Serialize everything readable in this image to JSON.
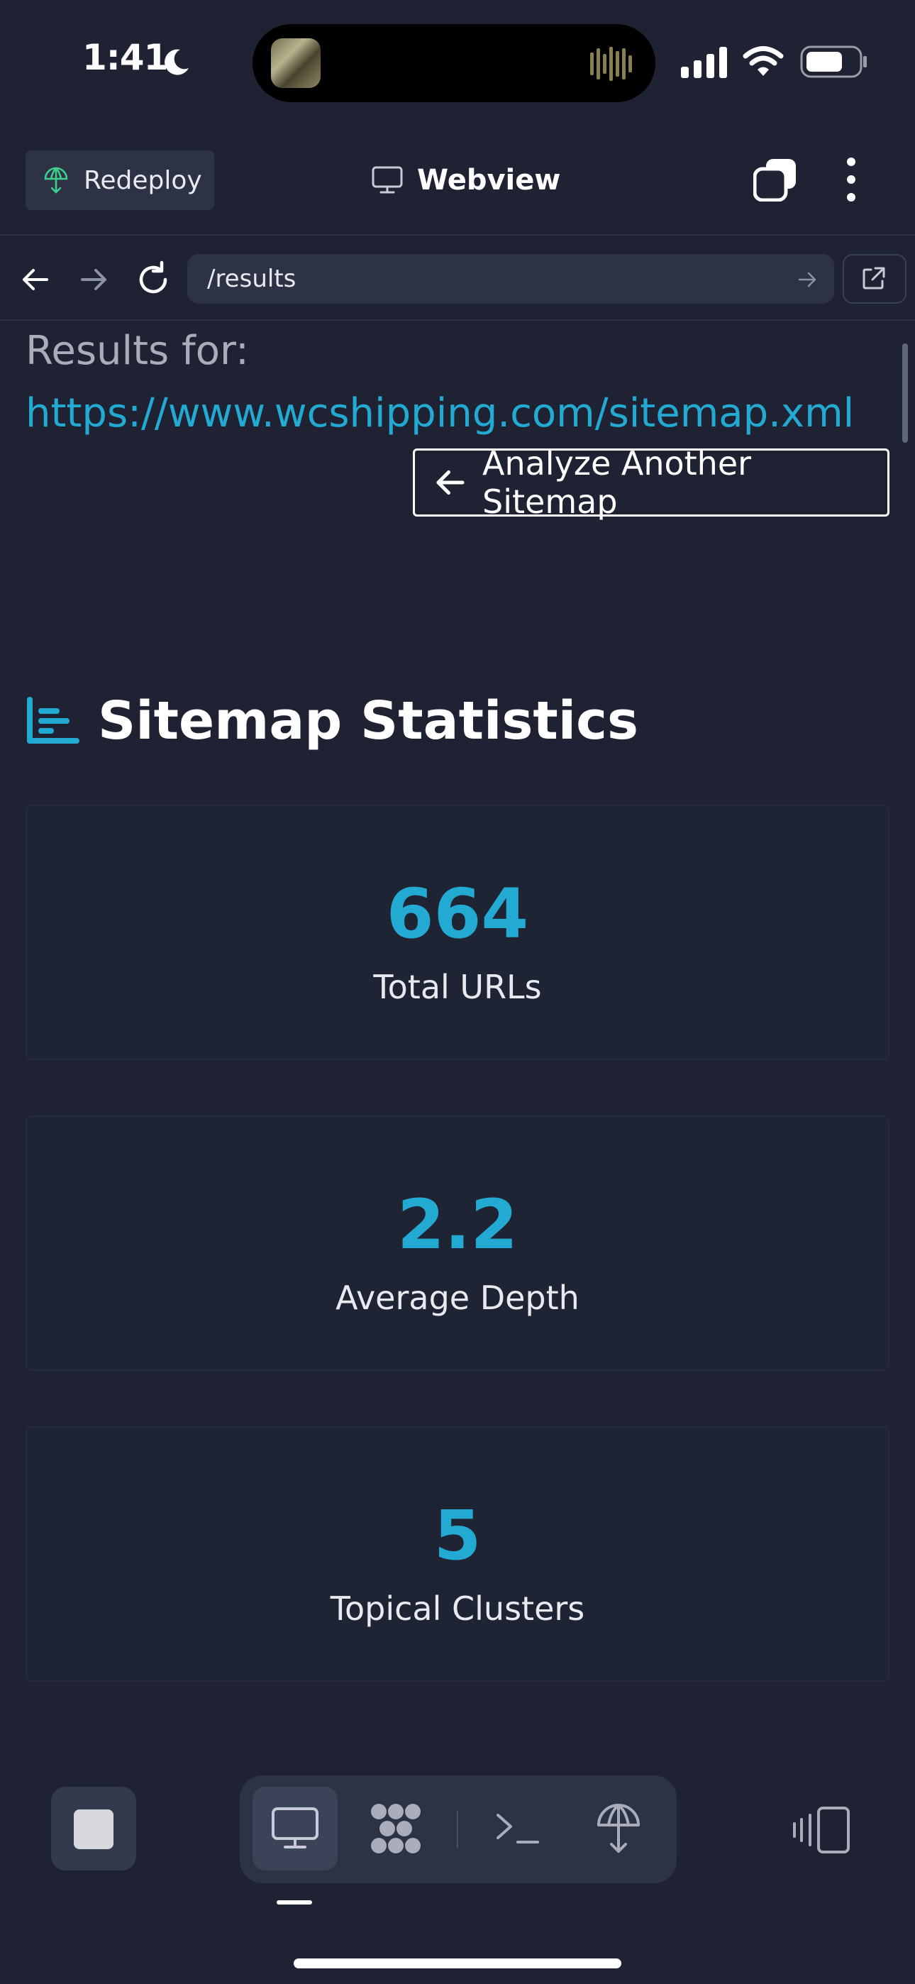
{
  "status_bar": {
    "time": "1:41"
  },
  "header": {
    "redeploy_label": "Redeploy",
    "title": "Webview"
  },
  "url_bar": {
    "path": "/results"
  },
  "page": {
    "results_label": "Results for:",
    "results_url": "https://www.wcshipping.com/sitemap.xml",
    "analyze_button": "Analyze Another Sitemap",
    "section_title": "Sitemap Statistics",
    "stats": [
      {
        "value": "664",
        "label": "Total URLs"
      },
      {
        "value": "2.2",
        "label": "Average Depth"
      },
      {
        "value": "5",
        "label": "Topical Clusters"
      }
    ]
  },
  "colors": {
    "background": "#1e2232",
    "accent": "#23aad2",
    "panel": "#2d3244",
    "redeploy_icon": "#3ecf8e"
  },
  "icons": {
    "status": [
      "moon-icon",
      "signal-icon",
      "wifi-icon",
      "battery-icon"
    ],
    "header": [
      "redeploy-icon",
      "monitor-icon",
      "tabs-icon",
      "kebab-menu-icon"
    ],
    "url_bar": [
      "back-arrow-icon",
      "forward-arrow-icon",
      "reload-icon",
      "url-go-arrow-icon",
      "external-link-icon"
    ],
    "toolbar": [
      "stop-icon",
      "monitor-icon",
      "workflow-icon",
      "terminal-icon",
      "deploy-icon",
      "devices-icon"
    ]
  },
  "toolbar": {
    "active_tab": "webview"
  }
}
